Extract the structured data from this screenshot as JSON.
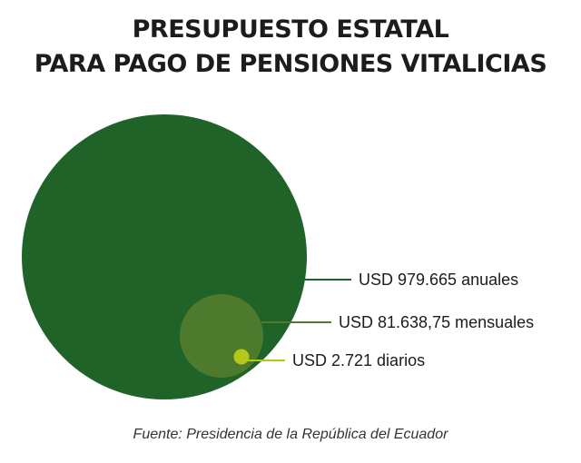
{
  "chart_data": {
    "type": "proportional-area-circles",
    "title_lines": [
      "PRESUPUESTO ESTATAL",
      "PARA PAGO DE PENSIONES VITALICIAS"
    ],
    "series": [
      {
        "label": "USD 979.665 anuales",
        "value": 979665,
        "color": "#1f6328"
      },
      {
        "label": "USD 81.638,75 mensuales",
        "value": 81638.75,
        "color": "#4e7a2e"
      },
      {
        "label": "USD 2.721 diarios",
        "value": 2721,
        "color": "#b5c81a"
      }
    ],
    "source": "Fuente: Presidencia de la República del Ecuador"
  }
}
